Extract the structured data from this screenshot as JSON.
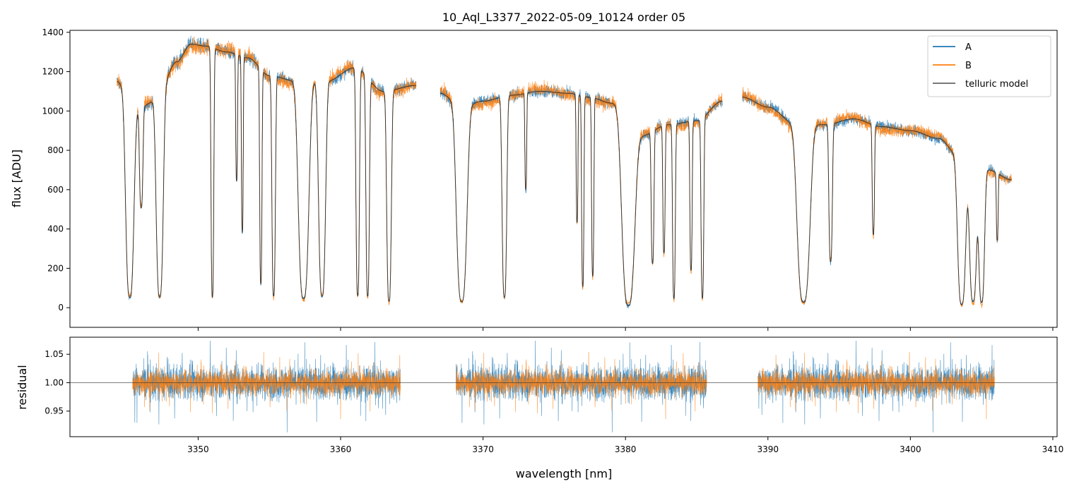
{
  "chart_data": [
    {
      "type": "line",
      "title": "10_Aql_L3377_2022-05-09_10124  order 05",
      "xlabel": "",
      "ylabel": "flux [ADU]",
      "xlim": [
        3341,
        3410.3
      ],
      "ylim": [
        -100,
        1410
      ],
      "yticks": [
        0,
        200,
        400,
        600,
        800,
        1000,
        1200,
        1400
      ],
      "xticks": [
        3350,
        3360,
        3370,
        3380,
        3390,
        3400,
        3410
      ],
      "xtick_labels_visible": false,
      "legend": {
        "placement": "top-right",
        "entries": [
          "A",
          "B",
          "telluric model"
        ]
      },
      "grid": false,
      "series": [
        {
          "name": "A",
          "color": "#1f77b4",
          "segments": [
            [
              3344.3,
              3365.3
            ],
            [
              3367.0,
              3386.8
            ],
            [
              3388.2,
              3407.1
            ]
          ],
          "noise": 28
        },
        {
          "name": "B",
          "color": "#ff7f0e",
          "segments": [
            [
              3344.3,
              3365.3
            ],
            [
              3367.0,
              3386.8
            ],
            [
              3388.2,
              3407.1
            ]
          ],
          "noise": 30
        },
        {
          "name": "telluric model",
          "color": "#222222",
          "segments": [
            [
              3344.3,
              3365.3
            ],
            [
              3367.0,
              3386.8
            ],
            [
              3388.2,
              3407.1
            ]
          ],
          "noise": 0
        }
      ],
      "continuum_anchors": {
        "x": [
          3344.3,
          3345.5,
          3347.0,
          3348.5,
          3349.5,
          3350.5,
          3352.0,
          3353.5,
          3355.0,
          3357.0,
          3359.0,
          3361.0,
          3363.0,
          3365.3,
          3367.0,
          3368.5,
          3370.0,
          3372.0,
          3374.0,
          3376.0,
          3377.5,
          3379.0,
          3381.0,
          3383.0,
          3385.0,
          3386.8,
          3388.2,
          3390.0,
          3392.0,
          3394.0,
          3396.0,
          3398.0,
          3400.0,
          3402.0,
          3403.5,
          3404.5,
          3405.5,
          3407.1
        ],
        "y": [
          1150,
          1000,
          1050,
          1250,
          1340,
          1330,
          1300,
          1270,
          1180,
          1150,
          1150,
          1220,
          1100,
          1130,
          1090,
          1020,
          1050,
          1080,
          1100,
          1090,
          1070,
          1040,
          870,
          930,
          950,
          1050,
          1070,
          1020,
          930,
          930,
          960,
          920,
          900,
          860,
          760,
          650,
          700,
          650
        ]
      },
      "absorption_lines": [
        {
          "x": 3345.2,
          "depth": 0.95,
          "width": 0.35
        },
        {
          "x": 3346.0,
          "depth": 0.5,
          "width": 0.15
        },
        {
          "x": 3347.3,
          "depth": 0.95,
          "width": 0.3
        },
        {
          "x": 3351.0,
          "depth": 0.96,
          "width": 0.12
        },
        {
          "x": 3352.7,
          "depth": 0.5,
          "width": 0.08
        },
        {
          "x": 3353.1,
          "depth": 0.7,
          "width": 0.08
        },
        {
          "x": 3354.4,
          "depth": 0.9,
          "width": 0.1
        },
        {
          "x": 3355.3,
          "depth": 0.95,
          "width": 0.15
        },
        {
          "x": 3357.4,
          "depth": 0.96,
          "width": 0.45
        },
        {
          "x": 3358.7,
          "depth": 0.95,
          "width": 0.3
        },
        {
          "x": 3361.2,
          "depth": 0.95,
          "width": 0.15
        },
        {
          "x": 3361.9,
          "depth": 0.95,
          "width": 0.15
        },
        {
          "x": 3363.4,
          "depth": 0.97,
          "width": 0.2
        },
        {
          "x": 3368.5,
          "depth": 0.97,
          "width": 0.45
        },
        {
          "x": 3371.5,
          "depth": 0.95,
          "width": 0.2
        },
        {
          "x": 3373.0,
          "depth": 0.45,
          "width": 0.08
        },
        {
          "x": 3376.6,
          "depth": 0.6,
          "width": 0.08
        },
        {
          "x": 3377.0,
          "depth": 0.9,
          "width": 0.1
        },
        {
          "x": 3377.7,
          "depth": 0.85,
          "width": 0.1
        },
        {
          "x": 3380.2,
          "depth": 0.99,
          "width": 0.55
        },
        {
          "x": 3381.9,
          "depth": 0.75,
          "width": 0.12
        },
        {
          "x": 3382.7,
          "depth": 0.7,
          "width": 0.1
        },
        {
          "x": 3383.4,
          "depth": 0.95,
          "width": 0.12
        },
        {
          "x": 3384.6,
          "depth": 0.8,
          "width": 0.1
        },
        {
          "x": 3385.4,
          "depth": 0.95,
          "width": 0.12
        },
        {
          "x": 3392.5,
          "depth": 0.97,
          "width": 0.55
        },
        {
          "x": 3394.4,
          "depth": 0.75,
          "width": 0.15
        },
        {
          "x": 3397.4,
          "depth": 0.6,
          "width": 0.1
        },
        {
          "x": 3403.6,
          "depth": 0.98,
          "width": 0.35
        },
        {
          "x": 3404.4,
          "depth": 0.95,
          "width": 0.3
        },
        {
          "x": 3405.0,
          "depth": 0.96,
          "width": 0.25
        },
        {
          "x": 3406.1,
          "depth": 0.5,
          "width": 0.08
        }
      ]
    },
    {
      "type": "line",
      "title": "",
      "xlabel": "wavelength [nm]",
      "ylabel": "residual",
      "xlim": [
        3341,
        3410.3
      ],
      "ylim": [
        0.905,
        1.08
      ],
      "yticks": [
        0.95,
        1.0,
        1.05
      ],
      "ytick_labels": [
        "0.95",
        "1.00",
        "1.05"
      ],
      "xticks": [
        3350,
        3360,
        3370,
        3380,
        3390,
        3400,
        3410
      ],
      "xtick_labels": [
        "3350",
        "3360",
        "3370",
        "3380",
        "3390",
        "3400",
        "3410"
      ],
      "reference_line": 1.0,
      "grid": false,
      "series": [
        {
          "name": "A",
          "color": "#1f77b4",
          "segments": [
            [
              3345.4,
              3364.2
            ],
            [
              3368.1,
              3385.7
            ],
            [
              3389.3,
              3405.9
            ]
          ],
          "center": 1.0,
          "noise": 0.03
        },
        {
          "name": "B",
          "color": "#ff7f0e",
          "segments": [
            [
              3345.4,
              3364.2
            ],
            [
              3368.1,
              3385.7
            ],
            [
              3389.3,
              3405.9
            ]
          ],
          "center": 1.0,
          "noise": 0.022
        }
      ]
    }
  ]
}
